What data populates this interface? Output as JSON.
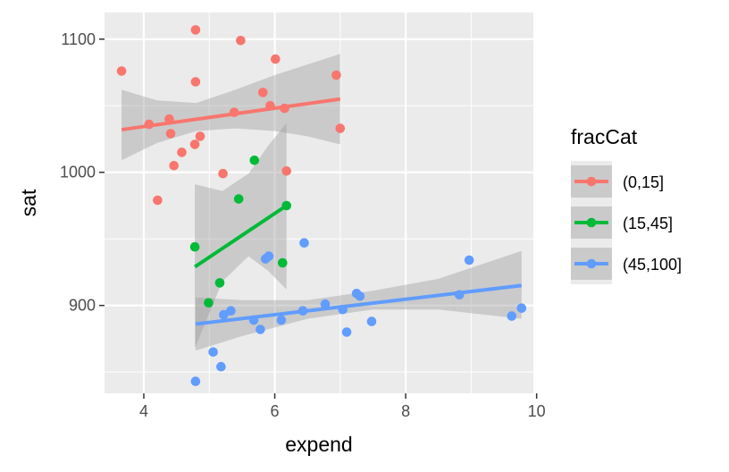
{
  "chart_data": {
    "type": "scatter",
    "xlabel": "expend",
    "ylabel": "sat",
    "xlim": [
      3.4,
      9.95
    ],
    "ylim": [
      834,
      1120
    ],
    "x_ticks": [
      4,
      6,
      8,
      10
    ],
    "x_minor": [
      5,
      7,
      9
    ],
    "y_ticks": [
      900,
      1000,
      1100
    ],
    "y_minor": [
      850,
      950,
      1050
    ],
    "x_tick_labels": [
      "4",
      "6",
      "8",
      "10"
    ],
    "y_tick_labels": [
      "900",
      "1000",
      "1100"
    ],
    "grid": true,
    "panel_color": "#ebebeb",
    "legend": {
      "title": "fracCat",
      "position": "right"
    },
    "series": [
      {
        "name": "(0,15]",
        "color": "#F8766D",
        "points": [
          [
            3.66,
            1076
          ],
          [
            4.08,
            1036
          ],
          [
            4.21,
            979
          ],
          [
            4.39,
            1040
          ],
          [
            4.41,
            1029
          ],
          [
            4.46,
            1005
          ],
          [
            4.58,
            1015
          ],
          [
            4.78,
            1021
          ],
          [
            4.79,
            1107
          ],
          [
            4.79,
            1068
          ],
          [
            4.86,
            1027
          ],
          [
            5.21,
            999
          ],
          [
            5.38,
            1045
          ],
          [
            5.48,
            1099
          ],
          [
            5.82,
            1060
          ],
          [
            5.93,
            1050
          ],
          [
            6.01,
            1085
          ],
          [
            6.15,
            1048
          ],
          [
            6.18,
            1001
          ],
          [
            6.94,
            1073
          ],
          [
            7.0,
            1033
          ]
        ],
        "fit": {
          "x": [
            3.66,
            7.0
          ],
          "y": [
            1032,
            1055
          ]
        },
        "band": {
          "x": [
            3.66,
            4.2,
            4.8,
            5.4,
            6.0,
            6.5,
            7.0
          ],
          "lower": [
            1009,
            1022,
            1031,
            1033,
            1031,
            1027,
            1021
          ],
          "upper": [
            1062,
            1054,
            1052,
            1062,
            1073,
            1081,
            1089
          ]
        }
      },
      {
        "name": "(15,45]",
        "color": "#00BA38",
        "points": [
          [
            4.78,
            944
          ],
          [
            4.99,
            902
          ],
          [
            5.16,
            917
          ],
          [
            5.45,
            980
          ],
          [
            5.69,
            1009
          ],
          [
            6.12,
            932
          ],
          [
            6.18,
            975
          ]
        ],
        "fit": {
          "x": [
            4.78,
            6.18
          ],
          "y": [
            929,
            975
          ]
        },
        "band": {
          "x": [
            4.78,
            5.2,
            5.6,
            5.9,
            6.18
          ],
          "lower": [
            868,
            918,
            937,
            926,
            912
          ],
          "upper": [
            991,
            986,
            999,
            1020,
            1037
          ]
        }
      },
      {
        "name": "(45,100]",
        "color": "#619CFF",
        "points": [
          [
            4.79,
            843
          ],
          [
            5.06,
            865
          ],
          [
            5.18,
            854
          ],
          [
            5.22,
            893
          ],
          [
            5.33,
            896
          ],
          [
            5.68,
            889
          ],
          [
            5.78,
            882
          ],
          [
            5.86,
            935
          ],
          [
            5.91,
            937
          ],
          [
            6.1,
            889
          ],
          [
            6.43,
            896
          ],
          [
            6.45,
            947
          ],
          [
            6.77,
            901
          ],
          [
            7.04,
            897
          ],
          [
            7.1,
            880
          ],
          [
            7.25,
            909
          ],
          [
            7.3,
            907
          ],
          [
            7.48,
            888
          ],
          [
            8.82,
            908
          ],
          [
            8.97,
            934
          ],
          [
            9.62,
            892
          ],
          [
            9.77,
            898
          ]
        ],
        "fit": {
          "x": [
            4.79,
            9.77
          ],
          "y": [
            886,
            915
          ]
        },
        "band": {
          "x": [
            4.79,
            5.5,
            6.5,
            7.5,
            8.5,
            9.77
          ],
          "lower": [
            866,
            877,
            890,
            897,
            897,
            890
          ],
          "upper": [
            906,
            904,
            904,
            911,
            920,
            941
          ]
        }
      }
    ]
  }
}
